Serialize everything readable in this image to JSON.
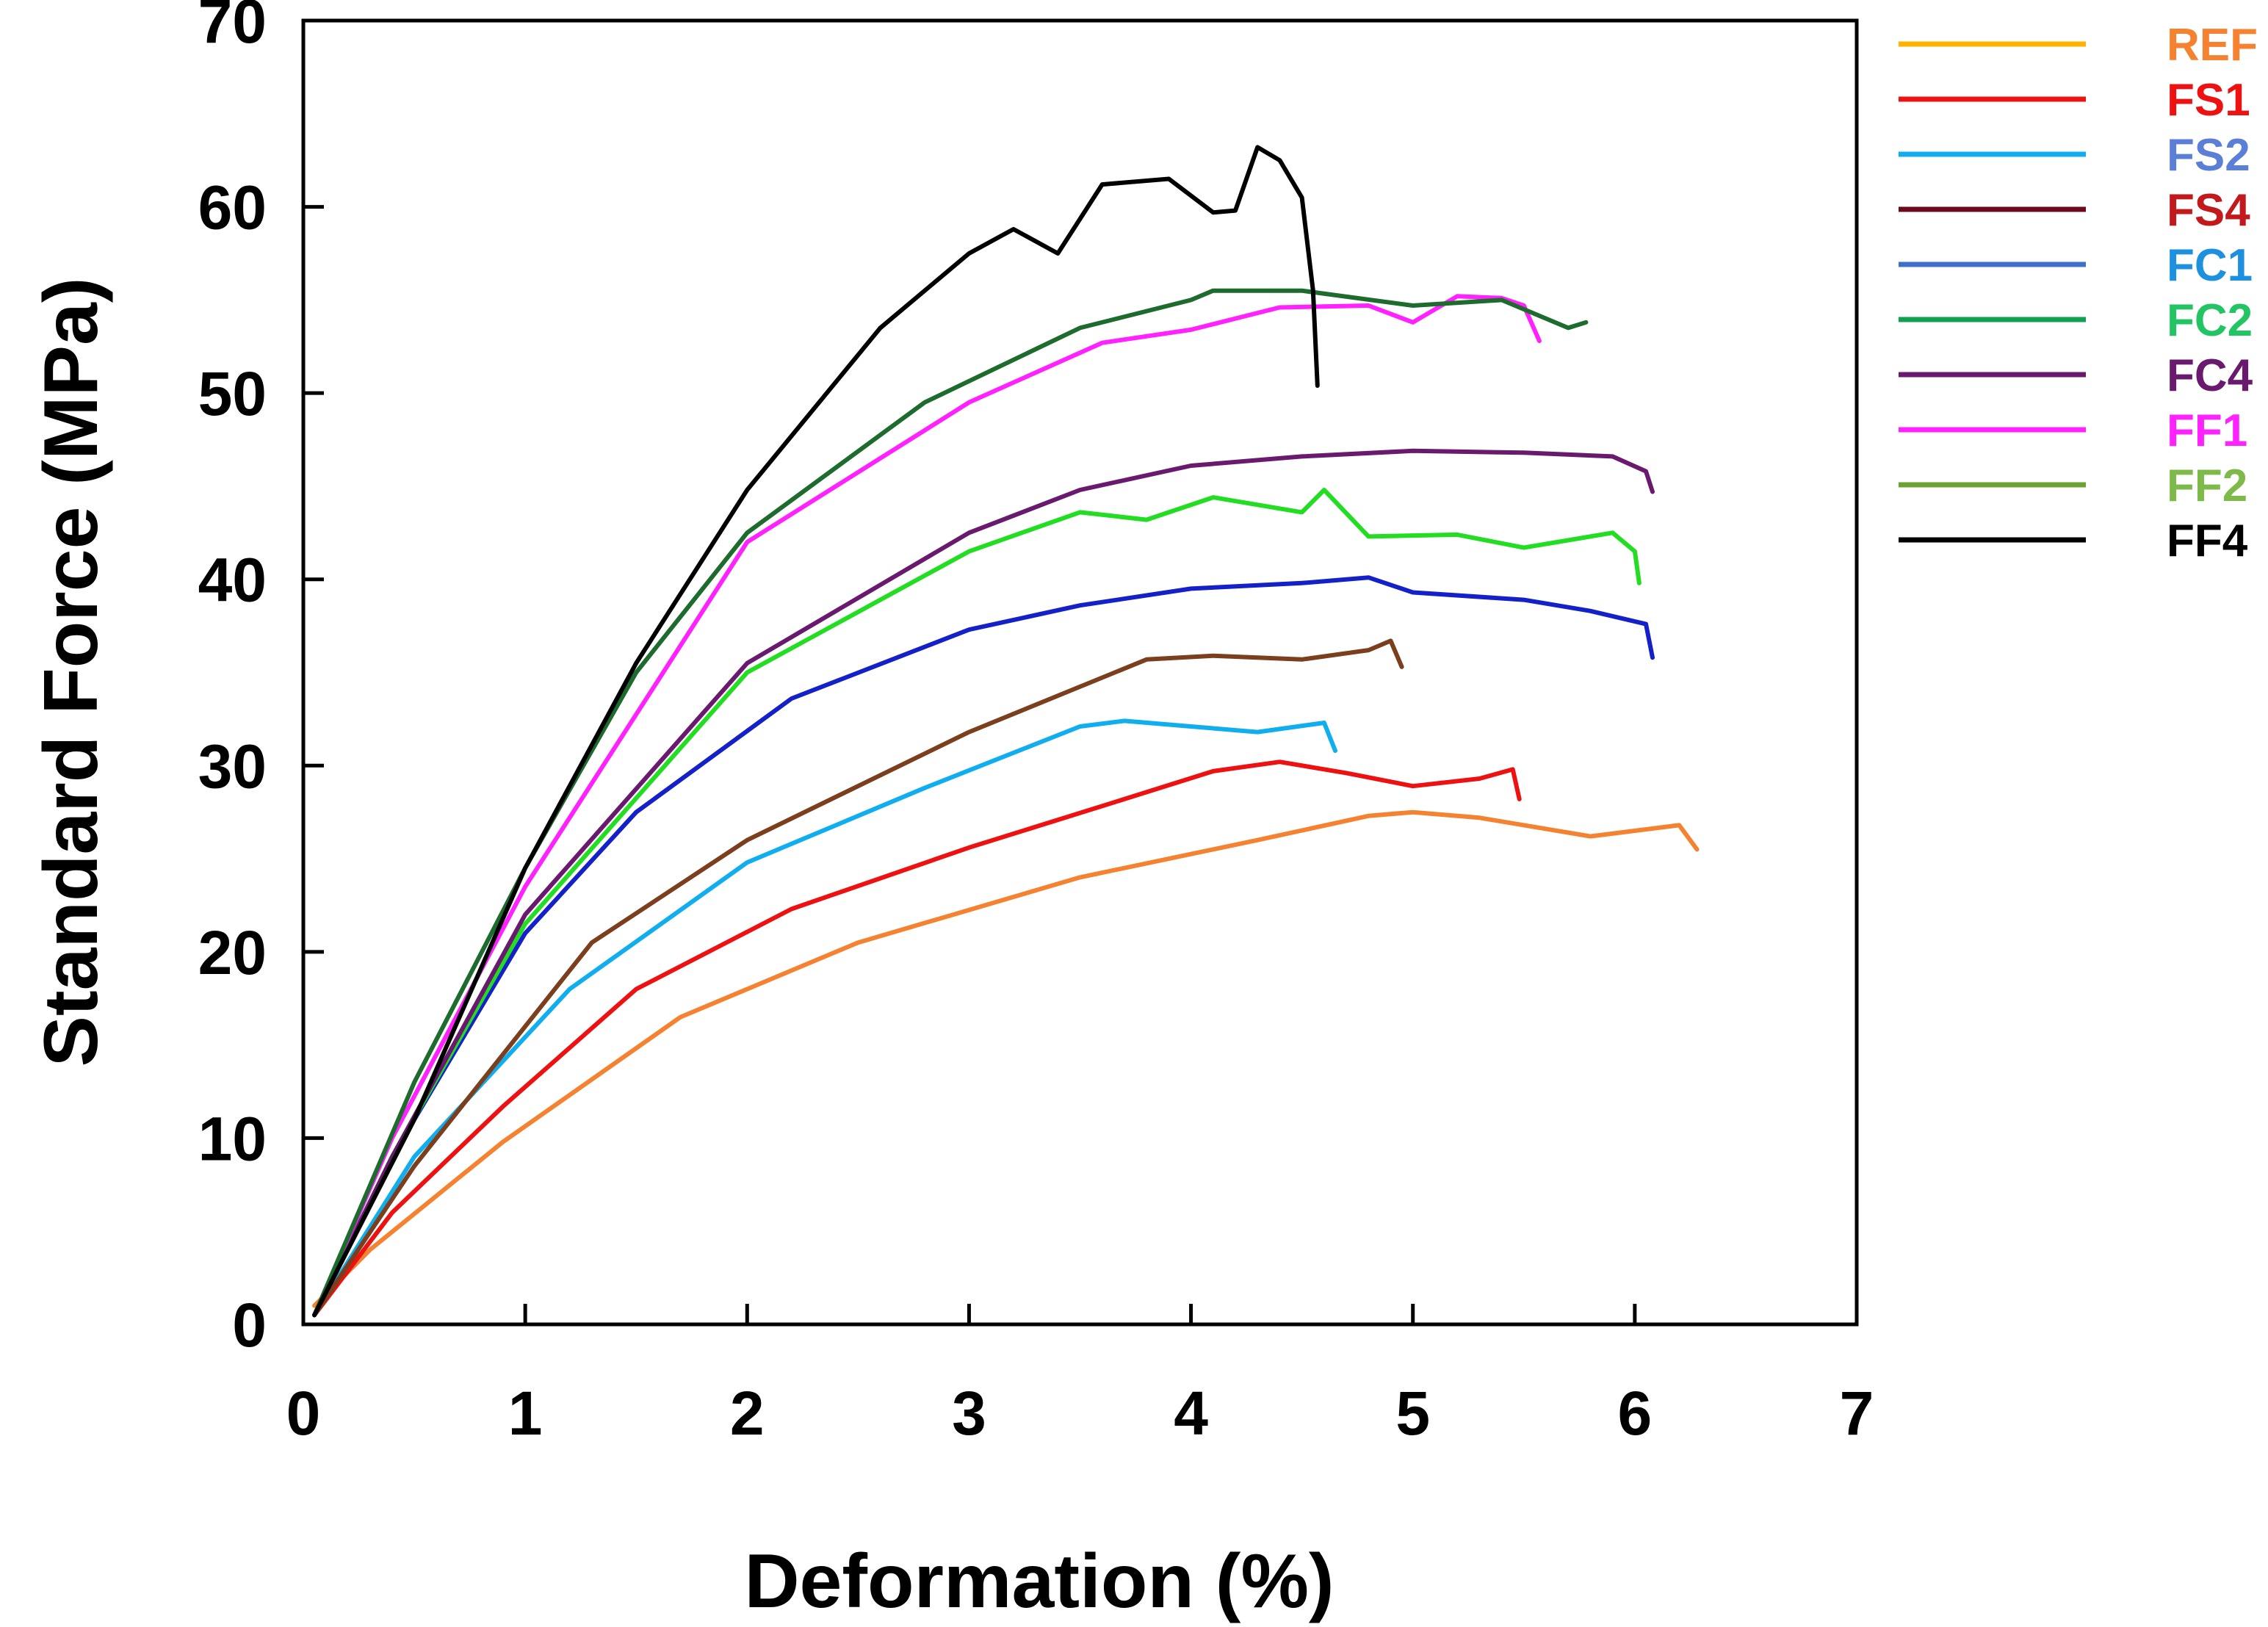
{
  "chart_data": {
    "type": "line",
    "title": "",
    "xlabel": "Deformation  (%)",
    "ylabel": "Standard Force (MPa)",
    "xlim": [
      0,
      7
    ],
    "ylim": [
      0,
      70
    ],
    "xticks": [
      "0",
      "1",
      "2",
      "3",
      "4",
      "5",
      "6",
      "7"
    ],
    "yticks": [
      "0",
      "10",
      "20",
      "30",
      "40",
      "50",
      "60",
      "70"
    ],
    "grid": false,
    "legend_position": "outside-right",
    "legend": [
      {
        "label": "REF",
        "line_color": "#FFB300",
        "text_color": "#F58231"
      },
      {
        "label": "FS1",
        "line_color": "#EE1111",
        "text_color": "#EE1111"
      },
      {
        "label": "FS2",
        "line_color": "#10AEEE",
        "text_color": "#5B7FD6"
      },
      {
        "label": "FS4",
        "line_color": "#6B0A1E",
        "text_color": "#C2191C"
      },
      {
        "label": "FC1",
        "line_color": "#3F70C8",
        "text_color": "#1E90E0"
      },
      {
        "label": "FC2",
        "line_color": "#12A050",
        "text_color": "#22C464"
      },
      {
        "label": "FC4",
        "line_color": "#6A1A6E",
        "text_color": "#6A1A6E"
      },
      {
        "label": "FF1",
        "line_color": "#FF22FF",
        "text_color": "#FF22FF"
      },
      {
        "label": "FF2",
        "line_color": "#6AA332",
        "text_color": "#7DBA4A"
      },
      {
        "label": "FF4",
        "line_color": "#000000",
        "text_color": "#000000"
      }
    ],
    "series": [
      {
        "name": "REF",
        "color": "#F58231",
        "x": [
          0.05,
          0.3,
          0.9,
          1.7,
          2.5,
          3.5,
          4.3,
          4.8,
          5.0,
          5.3,
          5.8,
          6.2,
          6.28
        ],
        "y": [
          1,
          4,
          9.8,
          16.5,
          20.5,
          24,
          26,
          27.3,
          27.5,
          27.2,
          26.2,
          26.8,
          25.5
        ]
      },
      {
        "name": "FS1",
        "color": "#EE1111",
        "x": [
          0.05,
          0.4,
          0.9,
          1.5,
          2.2,
          3.0,
          3.7,
          4.1,
          4.4,
          4.7,
          5.0,
          5.3,
          5.45,
          5.48
        ],
        "y": [
          0.5,
          6,
          11.7,
          18,
          22.3,
          25.6,
          28.2,
          29.7,
          30.2,
          29.6,
          28.9,
          29.3,
          29.8,
          28.2
        ]
      },
      {
        "name": "FS2",
        "color": "#10AEEE",
        "x": [
          0.05,
          0.5,
          1.2,
          2.0,
          2.8,
          3.5,
          3.7,
          4.0,
          4.3,
          4.6,
          4.65
        ],
        "y": [
          0.5,
          9,
          18,
          24.8,
          28.8,
          32.1,
          32.4,
          32.1,
          31.8,
          32.3,
          30.8
        ]
      },
      {
        "name": "FS4",
        "color": "#7B3F1E",
        "x": [
          0.05,
          0.5,
          1.3,
          2.0,
          3.0,
          3.8,
          4.1,
          4.5,
          4.8,
          4.9,
          4.95
        ],
        "y": [
          0.5,
          8.5,
          20.5,
          26,
          31.8,
          35.7,
          35.9,
          35.7,
          36.2,
          36.7,
          35.3
        ]
      },
      {
        "name": "FC1",
        "color": "#1420C8",
        "x": [
          0.05,
          0.4,
          1.0,
          1.5,
          2.2,
          3.0,
          3.5,
          4.0,
          4.5,
          4.8,
          5.0,
          5.5,
          5.8,
          6.05,
          6.08
        ],
        "y": [
          0.5,
          9,
          21,
          27.5,
          33.6,
          37.3,
          38.6,
          39.5,
          39.8,
          40.1,
          39.3,
          38.9,
          38.3,
          37.6,
          35.8
        ]
      },
      {
        "name": "FC2",
        "color": "#22DD22",
        "x": [
          0.05,
          0.4,
          1.0,
          2.0,
          3.0,
          3.5,
          3.8,
          4.1,
          4.5,
          4.6,
          4.8,
          5.2,
          5.5,
          5.9,
          6.0,
          6.02
        ],
        "y": [
          0.5,
          9,
          21.5,
          35,
          41.5,
          43.6,
          43.2,
          44.4,
          43.6,
          44.8,
          42.3,
          42.4,
          41.7,
          42.5,
          41.5,
          39.8
        ]
      },
      {
        "name": "FC4",
        "color": "#6A1A6E",
        "x": [
          0.05,
          0.4,
          1.0,
          2.0,
          3.0,
          3.5,
          4.0,
          4.5,
          5.0,
          5.5,
          5.9,
          6.05,
          6.08
        ],
        "y": [
          0.5,
          9,
          22,
          35.5,
          42.5,
          44.8,
          46.1,
          46.6,
          46.9,
          46.8,
          46.6,
          45.8,
          44.7
        ]
      },
      {
        "name": "FF1",
        "color": "#FF22FF",
        "x": [
          0.05,
          0.4,
          1.0,
          2.0,
          3.0,
          3.6,
          4.0,
          4.4,
          4.8,
          5.0,
          5.2,
          5.4,
          5.5,
          5.57
        ],
        "y": [
          0.5,
          10,
          23.5,
          42,
          49.5,
          52.7,
          53.4,
          54.6,
          54.7,
          53.8,
          55.2,
          55.1,
          54.7,
          52.8
        ]
      },
      {
        "name": "FF2",
        "color": "#1E6B2E",
        "x": [
          0.05,
          0.5,
          1.0,
          1.5,
          2.0,
          2.8,
          3.5,
          4.0,
          4.1,
          4.5,
          5.0,
          5.4,
          5.7,
          5.78
        ],
        "y": [
          0.5,
          13,
          24.5,
          35,
          42.5,
          49.5,
          53.5,
          55,
          55.5,
          55.5,
          54.7,
          55,
          53.5,
          53.8
        ]
      },
      {
        "name": "FF4",
        "color": "#000000",
        "x": [
          0.05,
          0.5,
          1.0,
          1.5,
          2.0,
          2.6,
          3.0,
          3.2,
          3.4,
          3.6,
          3.9,
          4.1,
          4.2,
          4.3,
          4.4,
          4.5,
          4.55,
          4.57
        ],
        "y": [
          0.5,
          11,
          24.5,
          35.5,
          44.8,
          53.5,
          57.5,
          58.8,
          57.5,
          61.2,
          61.5,
          59.7,
          59.8,
          63.2,
          62.5,
          60.5,
          55.5,
          50.4
        ]
      }
    ]
  }
}
